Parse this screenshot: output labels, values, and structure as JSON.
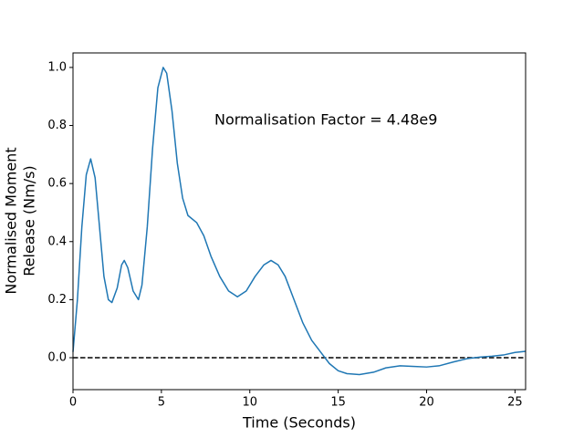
{
  "chart_data": {
    "type": "line",
    "xlabel": "Time (Seconds)",
    "ylabel": [
      "Normalised Moment",
      "Release (Nm/s)"
    ],
    "annotation": "Normalisation Factor = 4.48e9",
    "reference_line": 0,
    "xlim": [
      0,
      25.6
    ],
    "ylim": [
      -0.11,
      1.05
    ],
    "xticks": [
      0,
      5,
      10,
      15,
      20,
      25
    ],
    "yticks": [
      {
        "value": 0,
        "label": "0.0"
      },
      0.2,
      0.4,
      0.6,
      0.8,
      {
        "value": 1,
        "label": "1.0"
      }
    ],
    "series": [
      {
        "color": "#1f77b4",
        "x": [
          0,
          0.25,
          0.5,
          0.75,
          1.0,
          1.25,
          1.5,
          1.75,
          2.0,
          2.2,
          2.5,
          2.75,
          2.9,
          3.1,
          3.4,
          3.7,
          3.9,
          4.2,
          4.5,
          4.8,
          5.1,
          5.3,
          5.6,
          5.9,
          6.2,
          6.5,
          7.0,
          7.4,
          7.8,
          8.3,
          8.8,
          9.3,
          9.8,
          10.3,
          10.8,
          11.2,
          11.6,
          12.0,
          12.5,
          13.0,
          13.5,
          14.0,
          14.5,
          15.0,
          15.5,
          16.2,
          17.0,
          17.7,
          18.5,
          19.2,
          20.0,
          20.7,
          21.5,
          22.3,
          23.0,
          23.7,
          24.4,
          25.0,
          25.6
        ],
        "values": [
          0.02,
          0.2,
          0.45,
          0.63,
          0.685,
          0.62,
          0.45,
          0.28,
          0.2,
          0.19,
          0.24,
          0.32,
          0.335,
          0.31,
          0.23,
          0.2,
          0.25,
          0.45,
          0.72,
          0.93,
          1.0,
          0.98,
          0.85,
          0.67,
          0.55,
          0.49,
          0.465,
          0.42,
          0.35,
          0.28,
          0.23,
          0.21,
          0.23,
          0.28,
          0.32,
          0.335,
          0.32,
          0.28,
          0.2,
          0.12,
          0.06,
          0.02,
          -0.02,
          -0.045,
          -0.055,
          -0.058,
          -0.05,
          -0.035,
          -0.028,
          -0.03,
          -0.032,
          -0.028,
          -0.015,
          -0.003,
          0.002,
          0.005,
          0.01,
          0.018,
          0.022
        ]
      }
    ]
  }
}
